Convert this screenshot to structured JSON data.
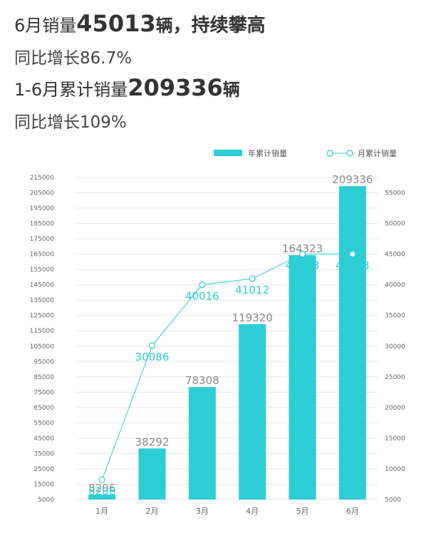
{
  "headline": {
    "line1": {
      "prefix": "6月销量",
      "number": "45013",
      "unit": "辆",
      "suffix": "，持续攀高"
    },
    "line2": "同比增长86.7%",
    "line3": {
      "prefix": "1-6月累计销量",
      "number": "209336",
      "unit": "辆"
    },
    "line4": "同比增长109%"
  },
  "colors": {
    "bar": "#2ccdd4",
    "line": "#2ccdd4",
    "grid": "#e6e6e6"
  },
  "chart_data": {
    "type": "bar",
    "categories": [
      "1月",
      "2月",
      "3月",
      "4月",
      "5月",
      "6月"
    ],
    "series": [
      {
        "name": "年累计销量",
        "type": "bar",
        "axis": "left",
        "values": [
          8206,
          38292,
          78308,
          119320,
          164323,
          209336
        ]
      },
      {
        "name": "月累计销量",
        "type": "line",
        "axis": "right",
        "values": [
          8206,
          30086,
          40016,
          41012,
          45003,
          45013
        ]
      }
    ],
    "ylim_left": [
      5000,
      215000
    ],
    "yticks_left": [
      5000,
      15000,
      25000,
      35000,
      45000,
      55000,
      65000,
      75000,
      85000,
      95000,
      105000,
      115000,
      125000,
      135000,
      145000,
      155000,
      165000,
      175000,
      185000,
      195000,
      205000,
      215000
    ],
    "ylim_right": [
      5000,
      57500
    ],
    "yticks_right": [
      5000,
      10000,
      15000,
      20000,
      25000,
      30000,
      35000,
      40000,
      45000,
      50000,
      55000
    ],
    "legend": {
      "position": "top-right",
      "entries": [
        "年累计销量",
        "月累计销量"
      ]
    },
    "grid": true
  }
}
